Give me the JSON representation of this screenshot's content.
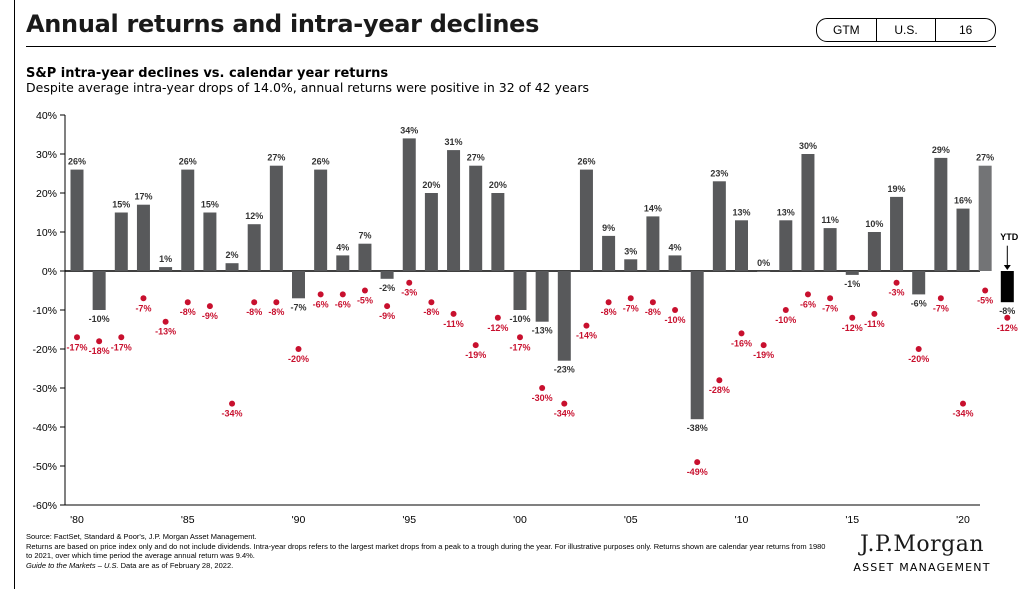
{
  "header": {
    "title": "Annual returns and intra-year declines",
    "tags": [
      "GTM",
      "U.S.",
      "16"
    ]
  },
  "chart_data": {
    "type": "bar",
    "title": "S&P intra-year declines vs. calendar year returns",
    "subtitle": "Despite average intra-year drops of 14.0%, annual returns were positive in 32 of 42 years",
    "ylim": [
      -60,
      40
    ],
    "y_ticks": [
      "40%",
      "30%",
      "20%",
      "10%",
      "0%",
      "-10%",
      "-20%",
      "-30%",
      "-40%",
      "-50%",
      "-60%"
    ],
    "x_ticks": [
      "'80",
      "'85",
      "'90",
      "'95",
      "'00",
      "'05",
      "'10",
      "'15",
      "'20"
    ],
    "years": [
      1980,
      1981,
      1982,
      1983,
      1984,
      1985,
      1986,
      1987,
      1988,
      1989,
      1990,
      1991,
      1992,
      1993,
      1994,
      1995,
      1996,
      1997,
      1998,
      1999,
      2000,
      2001,
      2002,
      2003,
      2004,
      2005,
      2006,
      2007,
      2008,
      2009,
      2010,
      2011,
      2012,
      2013,
      2014,
      2015,
      2016,
      2017,
      2018,
      2019,
      2020,
      2021,
      2022
    ],
    "series": [
      {
        "type": "bar",
        "values": [
          26,
          -10,
          15,
          17,
          1,
          26,
          15,
          2,
          12,
          27,
          -7,
          26,
          4,
          7,
          -2,
          34,
          20,
          31,
          27,
          20,
          -10,
          -13,
          -23,
          26,
          9,
          3,
          14,
          4,
          -38,
          23,
          13,
          0,
          13,
          30,
          11,
          -1,
          10,
          19,
          -6,
          29,
          16,
          27,
          -8
        ],
        "labels": [
          "26%",
          "-10%",
          "15%",
          "17%",
          "1%",
          "26%",
          "15%",
          "2%",
          "12%",
          "27%",
          "-7%",
          "26%",
          "4%",
          "7%",
          "-2%",
          "34%",
          "20%",
          "31%",
          "27%",
          "20%",
          "-10%",
          "-13%",
          "-23%",
          "26%",
          "9%",
          "3%",
          "14%",
          "4%",
          "-38%",
          "23%",
          "13%",
          "0%",
          "13%",
          "30%",
          "11%",
          "-1%",
          "10%",
          "19%",
          "-6%",
          "29%",
          "16%",
          "27%",
          "-8%"
        ]
      },
      {
        "type": "scatter",
        "values": [
          -17,
          -18,
          -17,
          -7,
          -13,
          -8,
          -9,
          -34,
          -8,
          -8,
          -20,
          -6,
          -6,
          -5,
          -9,
          -3,
          -8,
          -11,
          -19,
          -12,
          -17,
          -30,
          -34,
          -14,
          -8,
          -7,
          -8,
          -10,
          -49,
          -28,
          -16,
          -19,
          -10,
          -6,
          -7,
          -12,
          -11,
          -3,
          -20,
          -7,
          -34,
          -5,
          -12
        ],
        "labels": [
          "-17%",
          "-18%",
          "-17%",
          "-7%",
          "-13%",
          "-8%",
          "-9%",
          "-34%",
          "-8%",
          "-8%",
          "-20%",
          "-6%",
          "-6%",
          "-5%",
          "-9%",
          "-3%",
          "-8%",
          "-11%",
          "-19%",
          "-12%",
          "-17%",
          "-30%",
          "-34%",
          "-14%",
          "-8%",
          "-7%",
          "-8%",
          "-10%",
          "-49%",
          "-28%",
          "-16%",
          "-19%",
          "-10%",
          "-6%",
          "-7%",
          "-12%",
          "-11%",
          "-3%",
          "-20%",
          "-7%",
          "-34%",
          "-5%",
          "-12%"
        ]
      }
    ],
    "ytd_label": "YTD",
    "colors": {
      "bar": "#58595b",
      "bar_2021": "#737476",
      "bar_ytd": "#000000",
      "decline": "#c8102e",
      "axis": "#000000"
    }
  },
  "footnotes": {
    "source": "Source: FactSet, Standard & Poor's, J.P. Morgan Asset Management.",
    "note": "Returns are based on price index only and do not include dividends. Intra-year drops refers to the largest market drops from a peak to a trough during the year. For illustrative purposes only. Returns shown are calendar year returns from 1980 to 2021, over which time period the average annual return was 9.4%.",
    "guide_title": "Guide to the Markets – U.S.",
    "guide_rest": " Data are as of February 28, 2022."
  },
  "logo": {
    "name": "J.P.Morgan",
    "subtitle": "ASSET MANAGEMENT"
  }
}
